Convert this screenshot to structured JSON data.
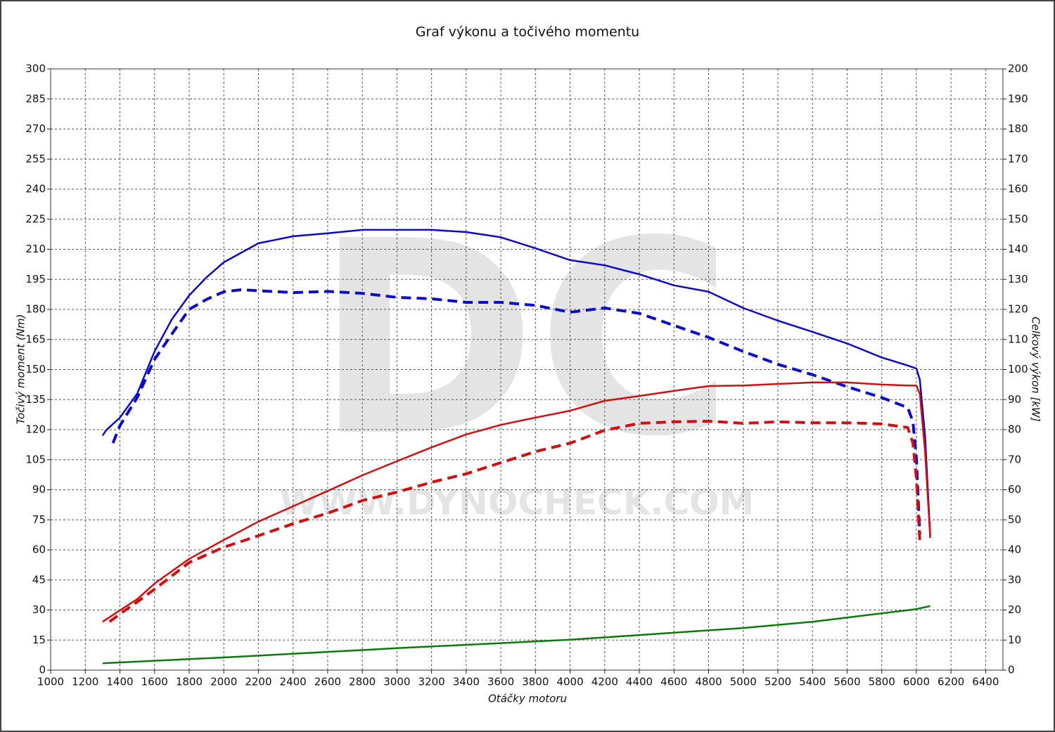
{
  "chart_data": {
    "type": "line",
    "title": "Graf výkonu a točivého momentu",
    "x_label": "Otáčky motoru",
    "y_label": "Točivý moment (Nm)",
    "y2_label": "Celkový výkon [kW]",
    "watermark": {
      "logo": "DC",
      "url": "WWW.DYNOCHECK.COM"
    },
    "grid": true,
    "xlim": [
      1000,
      6500
    ],
    "xticks": [
      1000,
      1200,
      1400,
      1600,
      1800,
      2000,
      2200,
      2400,
      2600,
      2800,
      3000,
      3200,
      3400,
      3600,
      3800,
      4000,
      4200,
      4400,
      4600,
      4800,
      5000,
      5200,
      5400,
      5600,
      5800,
      6000,
      6200,
      6400
    ],
    "ylim": [
      0,
      300
    ],
    "yticks": [
      0,
      15,
      30,
      45,
      60,
      75,
      90,
      105,
      120,
      135,
      150,
      165,
      180,
      195,
      210,
      225,
      240,
      255,
      270,
      285,
      300
    ],
    "y2lim": [
      0,
      200
    ],
    "y2ticks": [
      0,
      10,
      20,
      30,
      40,
      50,
      60,
      70,
      80,
      90,
      100,
      110,
      120,
      130,
      140,
      150,
      160,
      170,
      180,
      190,
      200
    ],
    "series": [
      {
        "color": "#0a0ac8",
        "dash": false,
        "axis": "y",
        "x": [
          1300,
          1320,
          1400,
          1500,
          1600,
          1700,
          1800,
          1900,
          2000,
          2200,
          2400,
          2600,
          2800,
          3000,
          3200,
          3400,
          3600,
          3800,
          4000,
          4200,
          4400,
          4600,
          4800,
          5000,
          5200,
          5400,
          5600,
          5800,
          5950,
          6000,
          6020,
          6050,
          6080
        ],
        "values": [
          117,
          119.7,
          126,
          138,
          159,
          175,
          187,
          196,
          203.5,
          213,
          216.5,
          218,
          219.7,
          219.7,
          219.7,
          218.6,
          216,
          210.5,
          204.6,
          202,
          197.5,
          192,
          188.8,
          180.7,
          174.4,
          168.8,
          163,
          156,
          152,
          150.5,
          145,
          117,
          67
        ]
      },
      {
        "color": "#0a0ac8",
        "dash": true,
        "axis": "y",
        "x": [
          1360,
          1400,
          1500,
          1600,
          1700,
          1800,
          1900,
          2000,
          2100,
          2400,
          2600,
          2800,
          3000,
          3200,
          3400,
          3600,
          3800,
          4000,
          4200,
          4400,
          4600,
          4800,
          5000,
          5200,
          5400,
          5600,
          5800,
          5950,
          5980,
          6000,
          6020
        ],
        "values": [
          113.3,
          122,
          136,
          155,
          167.7,
          180,
          185,
          188.8,
          189.8,
          188.4,
          189,
          188,
          186,
          185.3,
          183.5,
          183.5,
          182,
          178.6,
          180.7,
          178,
          172,
          166,
          159,
          152.6,
          147.4,
          141.4,
          136,
          131,
          124,
          106,
          67.7
        ]
      },
      {
        "color": "#d01010",
        "dash": false,
        "axis": "y2",
        "x": [
          1300,
          1400,
          1500,
          1600,
          1800,
          2000,
          2200,
          2400,
          2600,
          2800,
          3000,
          3200,
          3400,
          3600,
          3800,
          4000,
          4200,
          4400,
          4600,
          4800,
          5000,
          5200,
          5400,
          5600,
          5800,
          5950,
          6000,
          6020,
          6050,
          6080
        ],
        "values": [
          16.1,
          19.9,
          23.6,
          28.8,
          37,
          43.3,
          49.4,
          54.5,
          59.6,
          64.8,
          69.5,
          74.1,
          78.4,
          81.6,
          84,
          86.3,
          89.6,
          91.2,
          92.9,
          94.5,
          94.7,
          95.2,
          95.7,
          95.7,
          95,
          94.7,
          94.7,
          91.9,
          73,
          44
        ]
      },
      {
        "color": "#d01010",
        "dash": true,
        "axis": "y2",
        "x": [
          1340,
          1400,
          1500,
          1600,
          1800,
          2000,
          2200,
          2400,
          2600,
          2800,
          3000,
          3200,
          3400,
          3600,
          3800,
          4000,
          4200,
          4400,
          4600,
          4800,
          5000,
          5200,
          5400,
          5600,
          5800,
          5950,
          5980,
          6000,
          6020
        ],
        "values": [
          16.1,
          18.7,
          22.7,
          26.9,
          35.8,
          40.9,
          44.7,
          48.7,
          52.2,
          56.4,
          59.2,
          62.5,
          65.3,
          69,
          72.7,
          75.5,
          79.8,
          82.1,
          82.6,
          82.8,
          82.1,
          82.6,
          82.3,
          82.3,
          81.9,
          80.7,
          75.5,
          63.9,
          42.8
        ]
      },
      {
        "color": "#0a7a0a",
        "dash": false,
        "axis": "y2",
        "x": [
          1300,
          2000,
          3000,
          4000,
          5000,
          5400,
          6000,
          6080
        ],
        "values": [
          2.3,
          4.2,
          7.3,
          10.1,
          14,
          16.1,
          20.3,
          21.3
        ]
      }
    ]
  }
}
